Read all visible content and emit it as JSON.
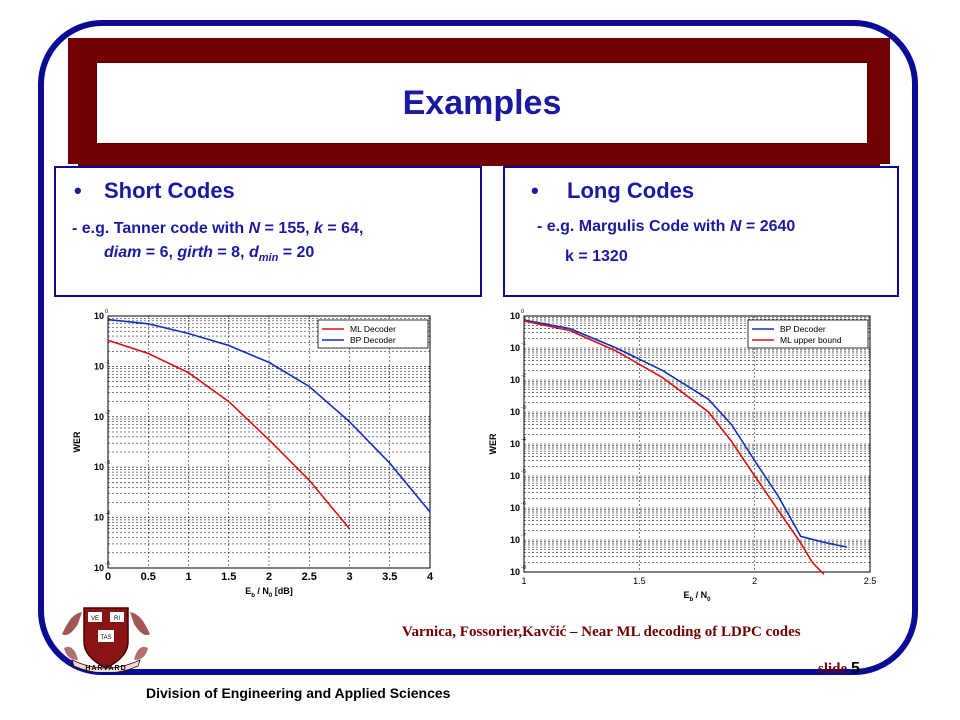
{
  "title": "Examples",
  "left_panel": {
    "bullet": "•",
    "heading": "Short Codes",
    "line1_prefix": "- e.g. Tanner code with",
    "line1_N": "N",
    "line1_eq1": " = 155, ",
    "line1_k": "k",
    "line1_eq2": " = 64,",
    "line2_diam": "diam",
    "line2_eq1": " = 6, ",
    "line2_girth": "girth",
    "line2_eq2": " = 8, ",
    "line2_d": "d",
    "line2_sub": "min",
    "line2_eq3": " = 20"
  },
  "right_panel": {
    "bullet": "•",
    "heading": "Long Codes",
    "line1_prefix": "- e.g. Margulis Code with",
    "line1_N": "N",
    "line1_eq": " = 2640",
    "line2": "k = 1320"
  },
  "citation": "Varnica, Fossorier,Kavčić – Near ML decoding of LDPC codes",
  "slide_label": "slide",
  "slide_number": "5",
  "division": "Division of Engineering and Applied Sciences",
  "logo": {
    "top_letters": [
      "VE",
      "RI",
      "TAS"
    ],
    "bottom_text": "HARVARD"
  },
  "colors": {
    "title_blue": "#1a1aa0",
    "frame_blue": "#0a0a96",
    "maroon": "#720000",
    "red_series": "#e01010",
    "blue_series": "#1030c0"
  },
  "chart_data": [
    {
      "type": "line",
      "ylabel": "WER",
      "xlabel": "E_b / N_0 [dB]",
      "x_ticks": [
        "0",
        "0.5",
        "1",
        "1.5",
        "2",
        "2.5",
        "3",
        "3.5",
        "4"
      ],
      "y_scale": "log",
      "y_ticks": [
        "10^0",
        "10^-1",
        "10^-2",
        "10^-3",
        "10^-4",
        "10^-5"
      ],
      "xlim": [
        0,
        4
      ],
      "ylim": [
        1e-05,
        1
      ],
      "grid": true,
      "legend_position": "top-right",
      "series": [
        {
          "name": "ML Decoder",
          "color": "#e01010",
          "x": [
            0,
            0.5,
            1,
            1.5,
            2,
            2.5,
            3
          ],
          "y": [
            0.33,
            0.18,
            0.075,
            0.02,
            0.0035,
            0.00055,
            6e-05
          ]
        },
        {
          "name": "BP Decoder",
          "color": "#1030c0",
          "x": [
            0,
            0.5,
            1,
            1.5,
            2,
            2.5,
            3,
            3.5,
            4
          ],
          "y": [
            0.85,
            0.7,
            0.45,
            0.26,
            0.12,
            0.04,
            0.008,
            0.0012,
            0.00013
          ]
        }
      ]
    },
    {
      "type": "line",
      "ylabel": "WER",
      "xlabel": "E_b / N_0",
      "x_ticks": [
        "1",
        "1.5",
        "2",
        "2.5"
      ],
      "y_scale": "log",
      "y_ticks": [
        "10^0",
        "10^-1",
        "10^-2",
        "10^-3",
        "10^-4",
        "10^-5",
        "10^-6",
        "10^-7",
        "10^-8"
      ],
      "xlim": [
        1,
        2.5
      ],
      "ylim": [
        1e-08,
        1
      ],
      "grid": true,
      "legend_position": "top-right",
      "series": [
        {
          "name": "BP Decoder",
          "color": "#1030c0",
          "x": [
            1,
            1.2,
            1.4,
            1.6,
            1.8,
            1.9,
            2.0,
            2.1,
            2.2,
            2.3,
            2.4
          ],
          "y": [
            0.75,
            0.4,
            0.1,
            0.02,
            0.0025,
            0.0004,
            3e-05,
            2.5e-06,
            1.3e-07,
            8.5e-08,
            6e-08
          ]
        },
        {
          "name": "ML upper bound",
          "color": "#e01010",
          "x": [
            1,
            1.2,
            1.4,
            1.6,
            1.8,
            1.9,
            2.0,
            2.1,
            2.2,
            2.25,
            2.3
          ],
          "y": [
            0.7,
            0.35,
            0.08,
            0.012,
            0.001,
            0.00012,
            1e-05,
            9e-07,
            8e-08,
            2e-08,
            8.5e-09
          ]
        }
      ]
    }
  ]
}
